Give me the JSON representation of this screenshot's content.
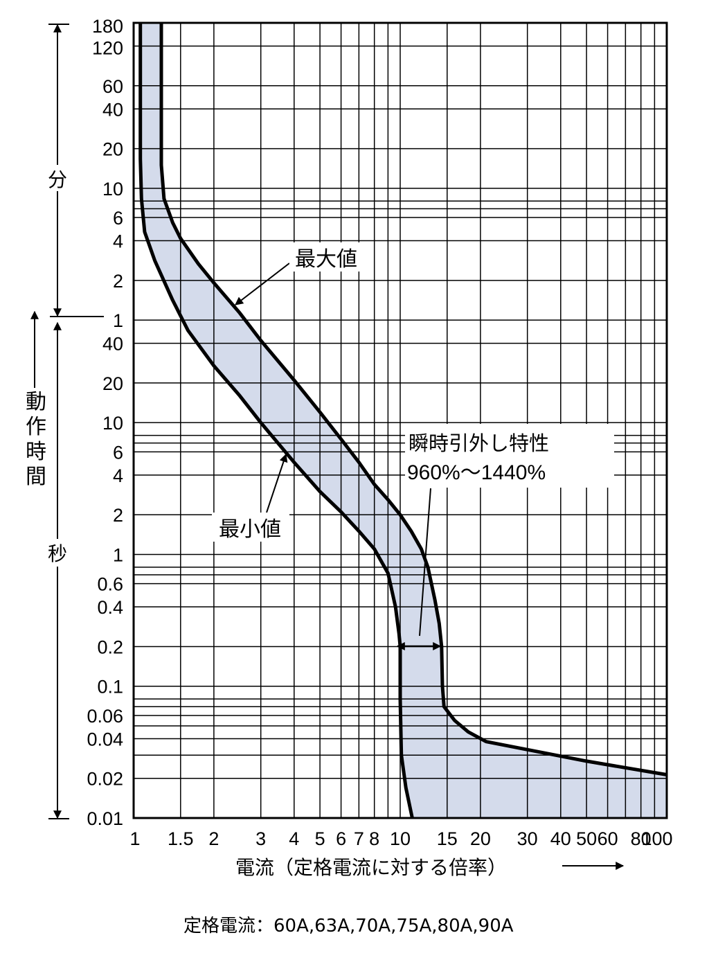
{
  "chart_data": {
    "type": "line",
    "xlabel": "電流（定格電流に対する倍率）",
    "ylabel_minutes": "分",
    "ylabel_main": "動作時間",
    "ylabel_seconds": "秒",
    "x_scale": "log",
    "xlim": [
      1,
      100
    ],
    "x_ticks": [
      {
        "v": 1,
        "label": "1"
      },
      {
        "v": 1.5,
        "label": "1.5"
      },
      {
        "v": 2,
        "label": "2"
      },
      {
        "v": 3,
        "label": "3"
      },
      {
        "v": 4,
        "label": "4"
      },
      {
        "v": 5,
        "label": "5"
      },
      {
        "v": 6,
        "label": "6"
      },
      {
        "v": 7,
        "label": "7"
      },
      {
        "v": 8,
        "label": "8"
      },
      {
        "v": 10,
        "label": "10"
      },
      {
        "v": 15,
        "label": "15"
      },
      {
        "v": 20,
        "label": "20"
      },
      {
        "v": 30,
        "label": "30"
      },
      {
        "v": 40,
        "label": "40"
      },
      {
        "v": 50,
        "label": "50"
      },
      {
        "v": 60,
        "label": "60"
      },
      {
        "v": 80,
        "label": "80"
      },
      {
        "v": 100,
        "label": "100"
      }
    ],
    "x_grid": [
      1.5,
      2,
      3,
      4,
      5,
      6,
      7,
      8,
      9,
      10,
      15,
      20,
      30,
      40,
      50,
      60,
      70,
      80,
      90
    ],
    "y_scale": "log",
    "y_unit": "seconds",
    "ylim": [
      0.01,
      10800
    ],
    "y_ticks_seconds": [
      {
        "v": 0.01,
        "label": "0.01"
      },
      {
        "v": 0.02,
        "label": "0.02"
      },
      {
        "v": 0.04,
        "label": "0.04"
      },
      {
        "v": 0.06,
        "label": "0.06"
      },
      {
        "v": 0.1,
        "label": "0.1"
      },
      {
        "v": 0.2,
        "label": "0.2"
      },
      {
        "v": 0.4,
        "label": "0.4"
      },
      {
        "v": 0.6,
        "label": "0.6"
      },
      {
        "v": 1,
        "label": "1"
      },
      {
        "v": 2,
        "label": "2"
      },
      {
        "v": 4,
        "label": "4"
      },
      {
        "v": 6,
        "label": "6"
      },
      {
        "v": 10,
        "label": "10"
      },
      {
        "v": 20,
        "label": "20"
      },
      {
        "v": 40,
        "label": "40"
      }
    ],
    "y_ticks_minutes": [
      {
        "v": 1,
        "label": "1"
      },
      {
        "v": 2,
        "label": "2"
      },
      {
        "v": 4,
        "label": "4"
      },
      {
        "v": 6,
        "label": "6"
      },
      {
        "v": 10,
        "label": "10"
      },
      {
        "v": 20,
        "label": "20"
      },
      {
        "v": 40,
        "label": "40"
      },
      {
        "v": 60,
        "label": "60"
      },
      {
        "v": 120,
        "label": "120"
      },
      {
        "v": 180,
        "label": "180"
      }
    ],
    "y_grid_seconds": [
      0.02,
      0.03,
      0.04,
      0.05,
      0.06,
      0.07,
      0.08,
      0.1,
      0.2,
      0.4,
      0.6,
      0.7,
      0.8,
      1,
      2,
      4,
      6,
      7,
      8,
      10,
      20,
      40,
      60,
      120,
      240,
      360,
      420,
      480,
      600,
      1200,
      2400,
      3600,
      7200
    ],
    "series": [
      {
        "name": "最大値",
        "points": [
          [
            1.27,
            10800
          ],
          [
            1.27,
            900
          ],
          [
            1.3,
            500
          ],
          [
            1.4,
            330
          ],
          [
            1.5,
            250
          ],
          [
            1.75,
            160
          ],
          [
            2,
            115
          ],
          [
            2.5,
            68
          ],
          [
            3,
            42
          ],
          [
            4,
            21
          ],
          [
            5,
            12
          ],
          [
            6,
            7.5
          ],
          [
            7,
            5
          ],
          [
            8,
            3.4
          ],
          [
            9,
            2.6
          ],
          [
            10,
            2
          ],
          [
            11,
            1.5
          ],
          [
            12,
            1.1
          ],
          [
            12.7,
            0.8
          ],
          [
            13.5,
            0.45
          ],
          [
            14,
            0.3
          ],
          [
            14.3,
            0.2
          ],
          [
            14.4,
            0.1
          ],
          [
            14.6,
            0.07
          ],
          [
            16,
            0.055
          ],
          [
            18,
            0.045
          ],
          [
            21,
            0.038
          ],
          [
            30,
            0.033
          ],
          [
            50,
            0.027
          ],
          [
            100,
            0.0213
          ]
        ]
      },
      {
        "name": "最小値",
        "points": [
          [
            1.06,
            10800
          ],
          [
            1.06,
            1000
          ],
          [
            1.07,
            500
          ],
          [
            1.1,
            280
          ],
          [
            1.2,
            170
          ],
          [
            1.4,
            85
          ],
          [
            1.6,
            50
          ],
          [
            2,
            27
          ],
          [
            2.5,
            16
          ],
          [
            3,
            10
          ],
          [
            4,
            5
          ],
          [
            5,
            3
          ],
          [
            6,
            2.1
          ],
          [
            7,
            1.5
          ],
          [
            8,
            1.1
          ],
          [
            9,
            0.72
          ],
          [
            9.6,
            0.4
          ],
          [
            9.9,
            0.25
          ],
          [
            10,
            0.2
          ],
          [
            10,
            0.08
          ],
          [
            10.1,
            0.03
          ],
          [
            10.5,
            0.017
          ],
          [
            11.1,
            0.01
          ]
        ]
      }
    ],
    "annotations": [
      {
        "text": "最大値"
      },
      {
        "text": "最小値"
      },
      {
        "lines": [
          "瞬時引外し特性",
          "960%～1440%"
        ],
        "range": [
          9.6,
          14.4
        ]
      }
    ],
    "footnote": "定格電流：60A,63A,70A,75A,80A,90A",
    "colors": {
      "band": "#d4dbeb",
      "curve": "#000000",
      "grid": "#000000"
    }
  }
}
